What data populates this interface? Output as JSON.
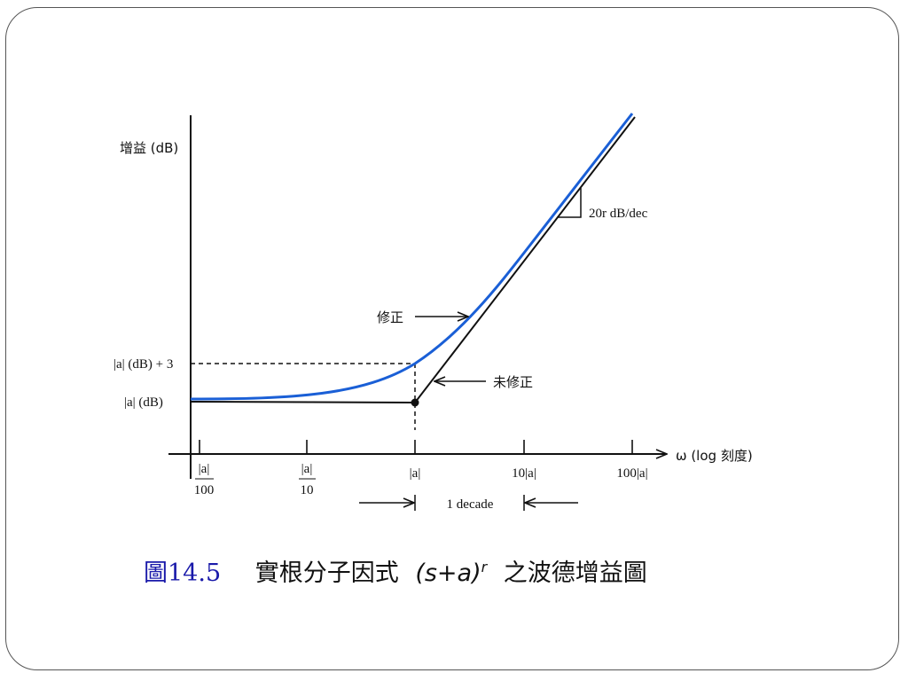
{
  "diagram": {
    "y_axis_label": "增益 (dB)",
    "y_ticks": {
      "upper": "|a| (dB) + 3",
      "lower": "|a| (dB)"
    },
    "x_axis_label": "ω (log 刻度)",
    "x_ticks": [
      {
        "num": "|a|",
        "den": "100"
      },
      {
        "num": "|a|",
        "den": "10"
      },
      {
        "num": "|a|",
        "den": ""
      },
      {
        "num": "10|a|",
        "den": ""
      },
      {
        "num": "100|a|",
        "den": ""
      }
    ],
    "slope_label": "20r dB/dec",
    "corrected_label": "修正",
    "uncorrected_label": "未修正",
    "decade_label": "1 decade",
    "colors": {
      "corrected_curve": "#1a5fd6",
      "asymptote": "#111111",
      "caption_number": "#1a1aaa"
    }
  },
  "caption": {
    "number": "圖14.5",
    "text_before": "實根分子因式",
    "formula_base": "(s+a)",
    "formula_exp": "r",
    "text_after": "之波德增益圖"
  }
}
